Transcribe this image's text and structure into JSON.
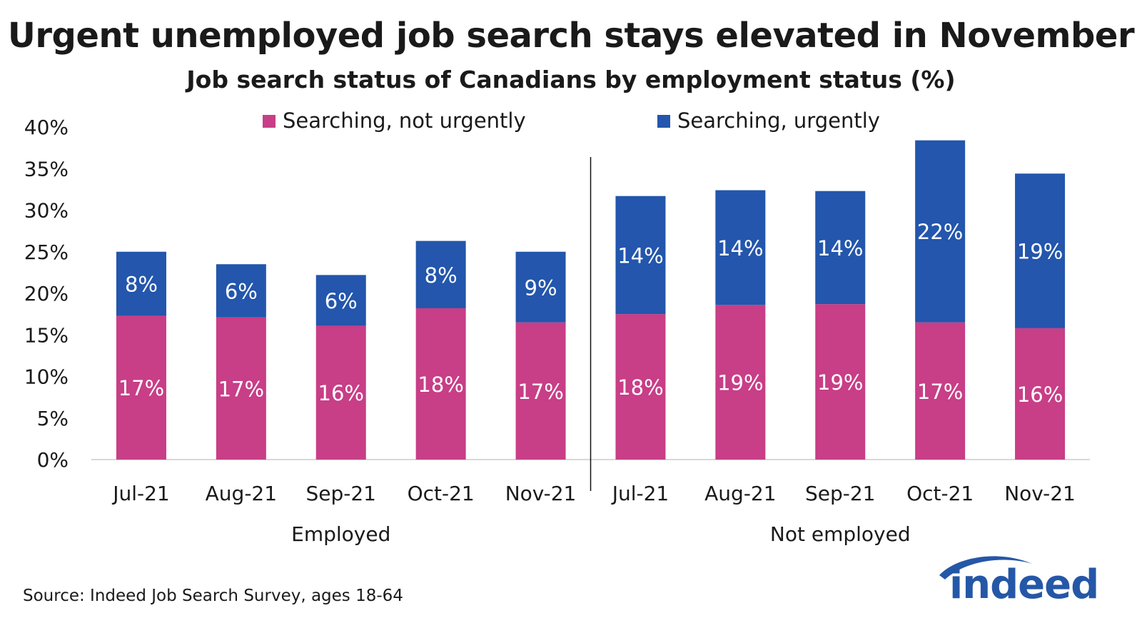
{
  "title": "Urgent unemployed job search stays elevated in November",
  "subtitle": "Job search status of Canadians by employment status (%)",
  "source": "Source: Indeed Job Search Survey, ages 18-64",
  "logo_text": "indeed",
  "colors": {
    "not_urgent": "#C83E87",
    "urgent": "#2356AC",
    "logo": "#2557A7"
  },
  "chart_data": {
    "type": "bar",
    "stacked": true,
    "groups": [
      "Employed",
      "Not employed"
    ],
    "categories": [
      "Jul-21",
      "Aug-21",
      "Sep-21",
      "Oct-21",
      "Nov-21",
      "Jul-21",
      "Aug-21",
      "Sep-21",
      "Oct-21",
      "Nov-21"
    ],
    "group_index": [
      0,
      0,
      0,
      0,
      0,
      1,
      1,
      1,
      1,
      1
    ],
    "series": [
      {
        "name": "Searching, not urgently",
        "color": "#C83E87",
        "values": [
          17.3,
          17.1,
          16.1,
          18.2,
          16.5,
          17.5,
          18.6,
          18.7,
          16.5,
          15.8
        ],
        "labels": [
          "17%",
          "17%",
          "16%",
          "18%",
          "17%",
          "18%",
          "19%",
          "19%",
          "17%",
          "16%"
        ]
      },
      {
        "name": "Searching, urgently",
        "color": "#2356AC",
        "values": [
          7.7,
          6.4,
          6.1,
          8.1,
          8.5,
          14.2,
          13.8,
          13.6,
          21.9,
          18.6
        ],
        "labels": [
          "8%",
          "6%",
          "6%",
          "8%",
          "9%",
          "14%",
          "14%",
          "14%",
          "22%",
          "19%"
        ]
      }
    ],
    "y_ticks": [
      "0%",
      "5%",
      "10%",
      "15%",
      "20%",
      "25%",
      "30%",
      "35%",
      "40%"
    ],
    "ylim": [
      0,
      40
    ],
    "legend_position": "top",
    "grid": false
  }
}
